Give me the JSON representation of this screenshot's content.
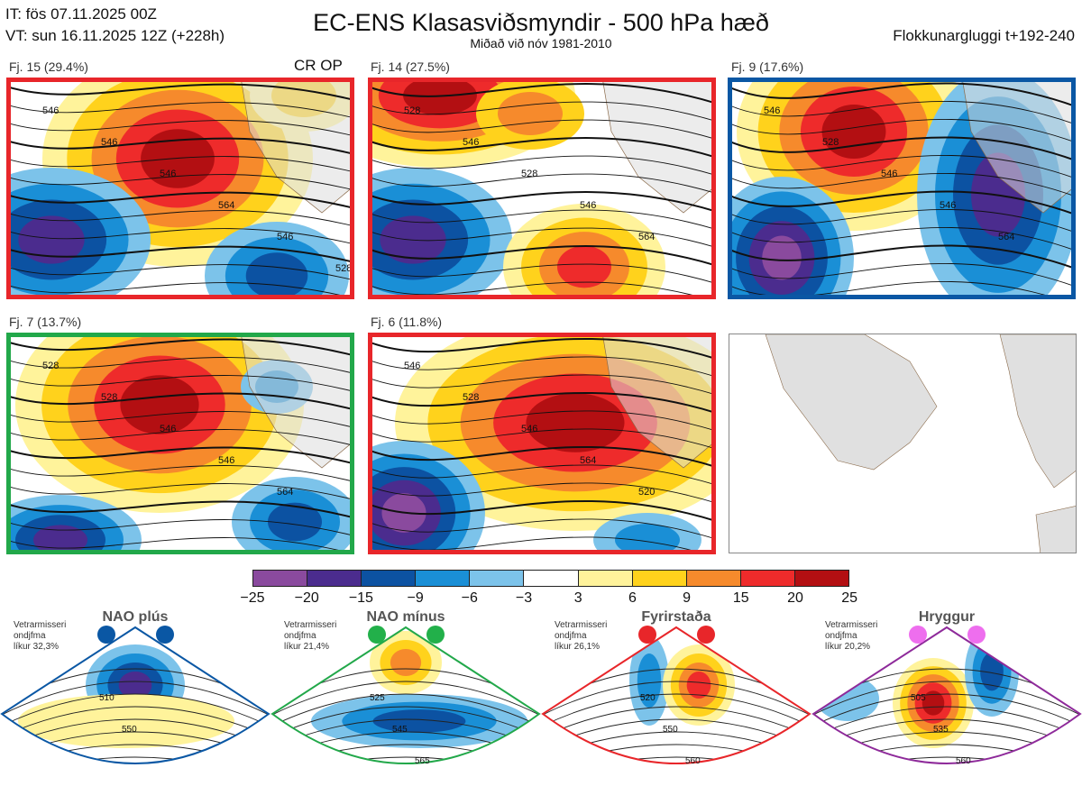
{
  "header": {
    "init_time": "IT: fös 07.11.2025 00Z",
    "valid_time": "VT: sun 16.11.2025 12Z  (+228h)",
    "title": "EC-ENS Klasasviðsmyndir - 500 hPa hæð",
    "subtitle": "Miðað við nóv 1981-2010",
    "window": "Flokkunargluggi t+192-240"
  },
  "panels": [
    {
      "label": "Fj. 15 (29.4%)",
      "tag": "CR OP",
      "border": "#e8262a",
      "contours": [
        "546",
        "546",
        "546",
        "564",
        "546",
        "528"
      ]
    },
    {
      "label": "Fj. 14 (27.5%)",
      "border": "#e8262a",
      "contours": [
        "528",
        "546",
        "528",
        "546",
        "564"
      ]
    },
    {
      "label": "Fj. 9 (17.6%)",
      "border": "#0a57a4",
      "contours": [
        "546",
        "528",
        "546",
        "546",
        "564"
      ]
    },
    {
      "label": "Fj. 7 (13.7%)",
      "border": "#22a84a",
      "contours": [
        "528",
        "528",
        "546",
        "546",
        "564"
      ]
    },
    {
      "label": "Fj. 6 (11.8%)",
      "border": "#e8262a",
      "contours": [
        "546",
        "528",
        "546",
        "564",
        "520"
      ]
    }
  ],
  "colorbar": {
    "ticks": [
      "−25",
      "−20",
      "−15",
      "−9",
      "−6",
      "−3",
      "3",
      "6",
      "9",
      "15",
      "20",
      "25"
    ],
    "colors": [
      "#8a4a9e",
      "#4b2c8e",
      "#0c52a2",
      "#1a8fd6",
      "#7cc3ea",
      "#ffffff",
      "#fff39b",
      "#ffd21c",
      "#f68a2c",
      "#ee2b2b",
      "#b30f12"
    ]
  },
  "regimes": [
    {
      "title": "NAO plús",
      "note": [
        "Vetrarmisseri",
        "ondjfma",
        "líkur 32,3%"
      ],
      "color": "#0a57a4",
      "dot": "#0a57a4",
      "contours": [
        "510",
        "550"
      ]
    },
    {
      "title": "NAO mínus",
      "note": [
        "Vetrarmisseri",
        "ondjfma",
        "líkur 21,4%"
      ],
      "color": "#22a84a",
      "dot": "#22b04a",
      "contours": [
        "525",
        "545",
        "565"
      ]
    },
    {
      "title": "Fyrirstaða",
      "note": [
        "Vetrarmisseri",
        "ondjfma",
        "líkur 26,1%"
      ],
      "color": "#e8262a",
      "dot": "#e8262a",
      "contours": [
        "520",
        "550",
        "560"
      ]
    },
    {
      "title": "Hryggur",
      "note": [
        "Vetrarmisseri",
        "ondjfma",
        "líkur 20,2%"
      ],
      "color": "#8e2a9a",
      "dot": "#ee6eee",
      "contours": [
        "505",
        "535",
        "560"
      ]
    }
  ]
}
